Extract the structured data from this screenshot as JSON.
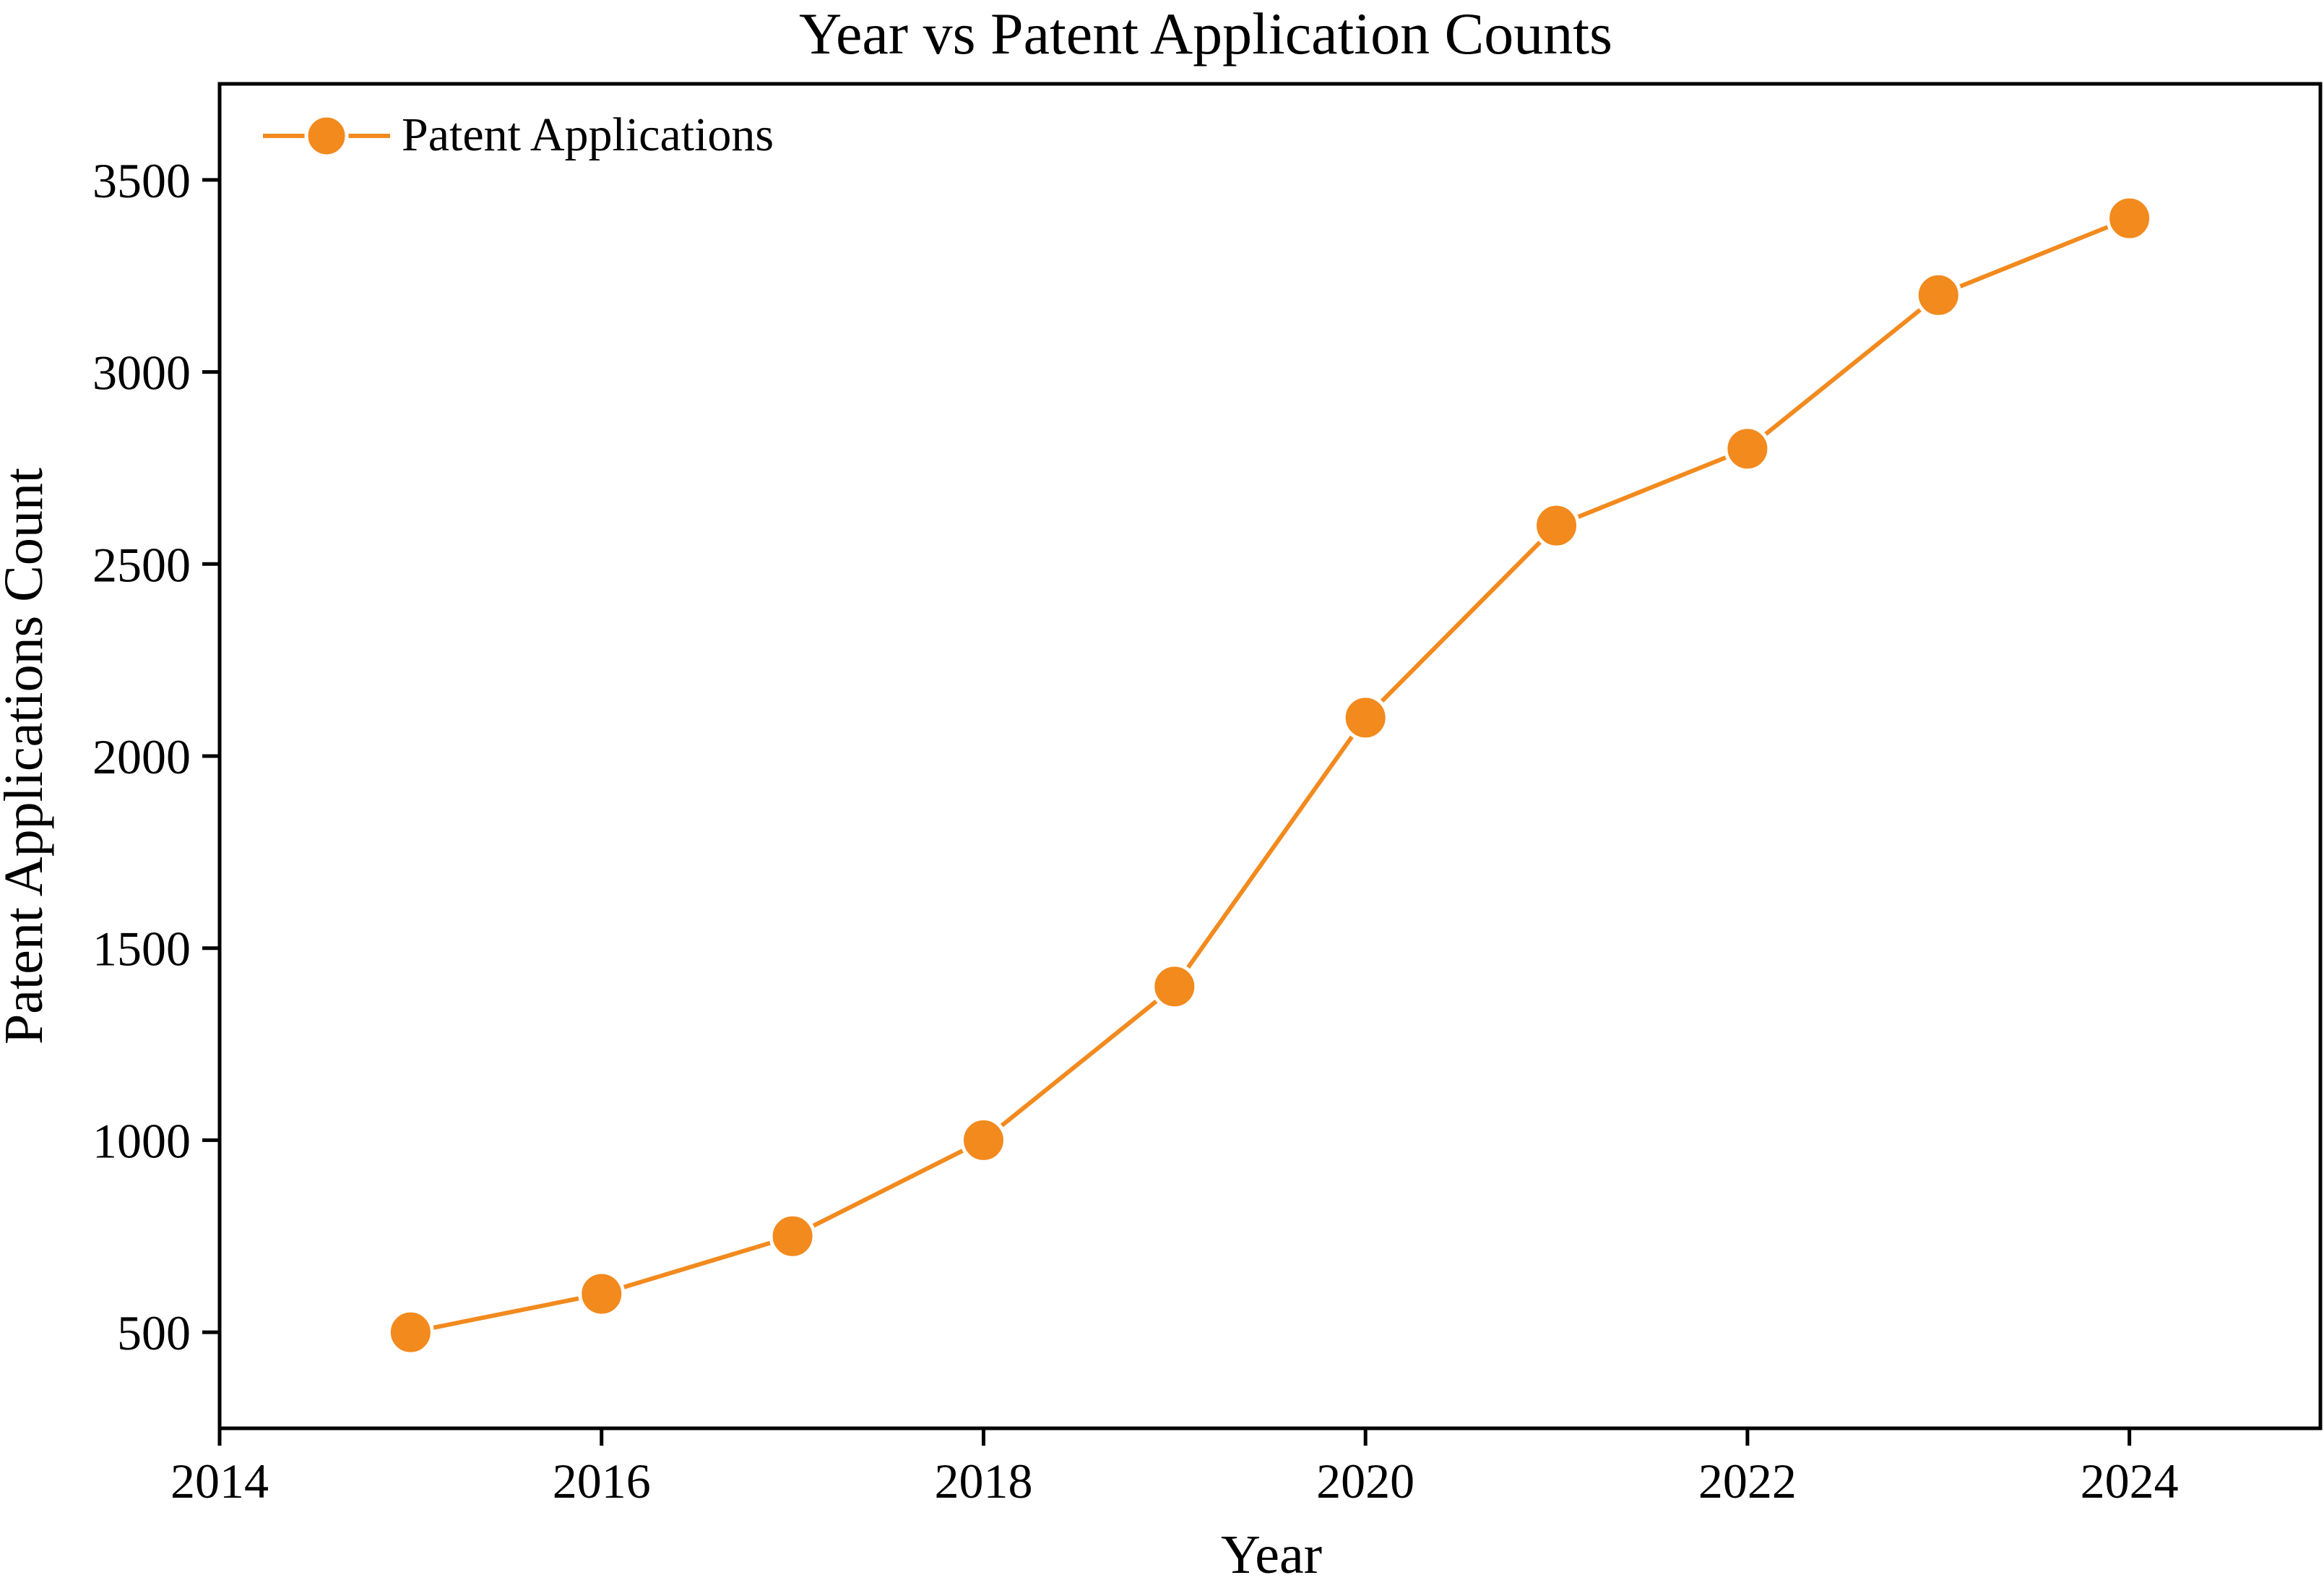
{
  "chart_data": {
    "type": "line",
    "title": "Year vs Patent Application Counts",
    "xlabel": "Year",
    "ylabel": "Patent Applications Count",
    "xlim": [
      2014,
      2025
    ],
    "ylim": [
      250,
      3750
    ],
    "xticks": [
      2014,
      2016,
      2018,
      2020,
      2022,
      2024
    ],
    "yticks": [
      500,
      1000,
      1500,
      2000,
      2500,
      3000,
      3500
    ],
    "grid": false,
    "legend_position": "top-left",
    "series": [
      {
        "name": "Patent Applications",
        "color": "#f28a1e",
        "marker": "circle",
        "x": [
          2015,
          2016,
          2017,
          2018,
          2019,
          2020,
          2021,
          2022,
          2023,
          2024
        ],
        "y": [
          500,
          600,
          750,
          1000,
          1400,
          2100,
          2600,
          2800,
          3200,
          3400
        ]
      }
    ]
  }
}
